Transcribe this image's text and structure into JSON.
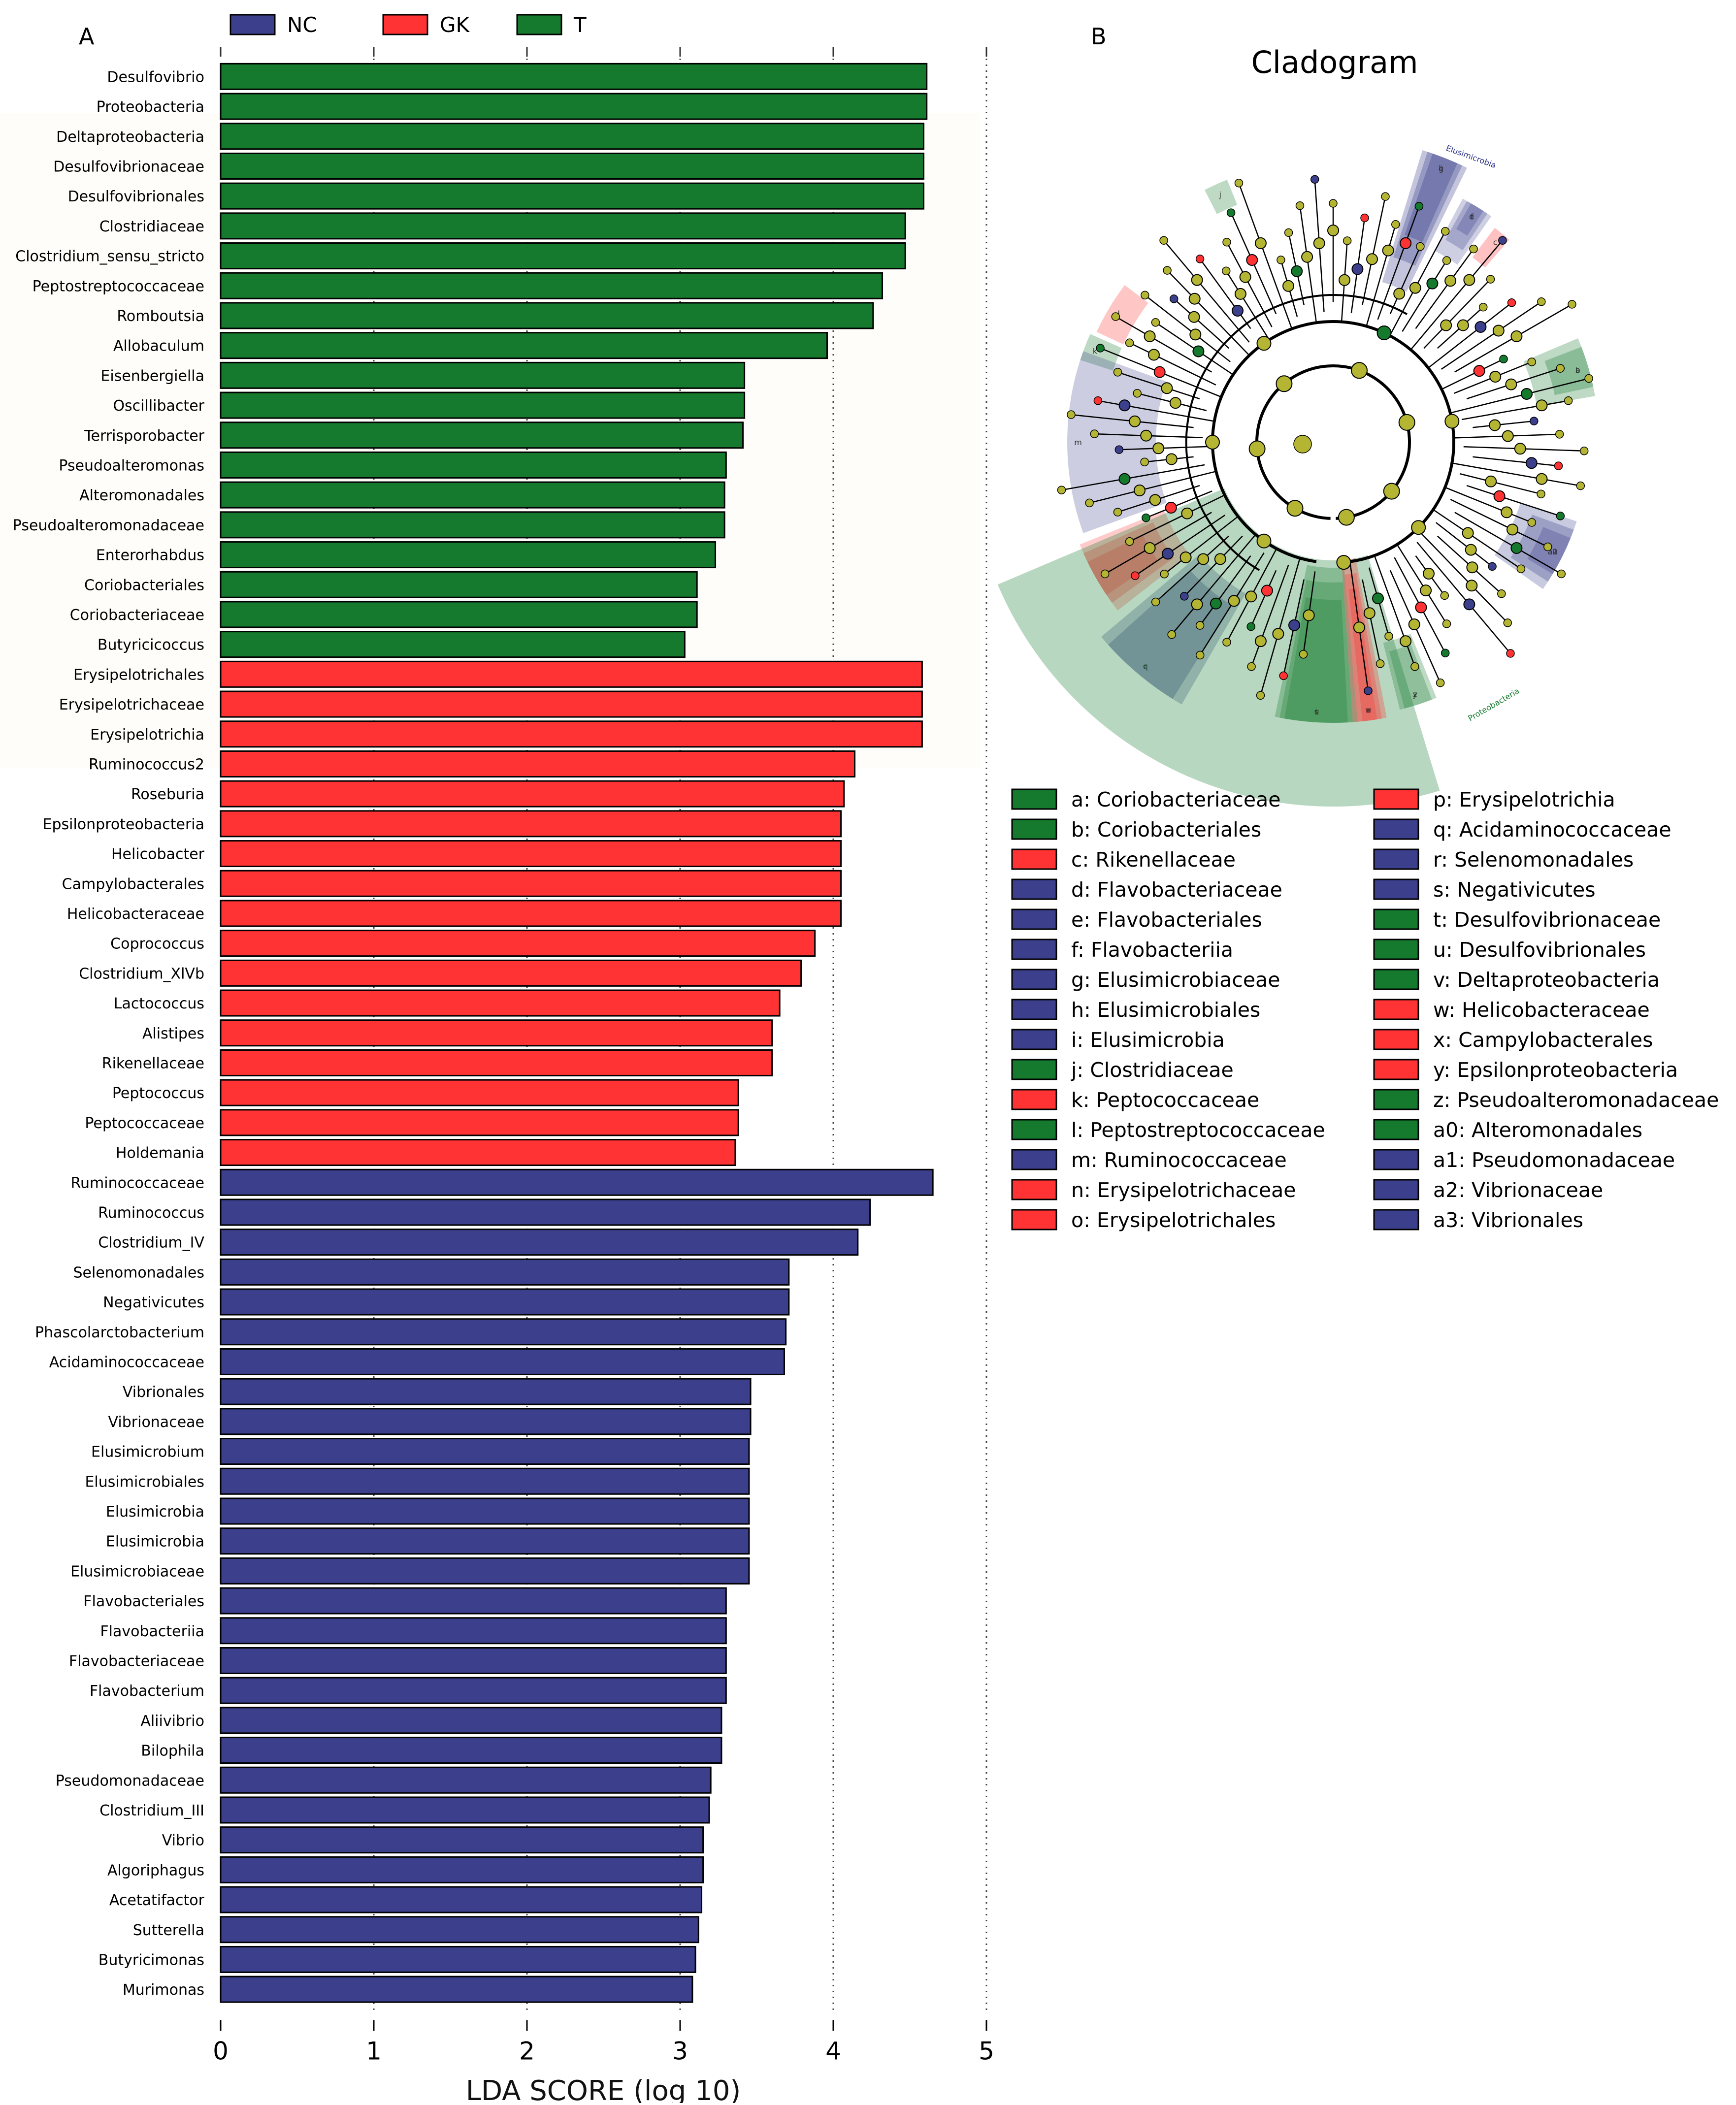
{
  "panel_a_letter": "A",
  "panel_b_letter": "B",
  "colors": {
    "NC": "#3b3f8c",
    "GK": "#ff3333",
    "T": "#157a2d"
  },
  "chart_data": {
    "type": "bar",
    "orientation": "horizontal",
    "xlabel": "LDA SCORE (log 10)",
    "ylabel": "",
    "xlim": [
      0,
      5
    ],
    "xticks": [
      "0",
      "1",
      "2",
      "3",
      "4",
      "5"
    ],
    "grid": "vertical dotted",
    "legend": {
      "position": "top",
      "entries": [
        {
          "key": "NC",
          "label": "NC"
        },
        {
          "key": "GK",
          "label": "GK"
        },
        {
          "key": "T",
          "label": "T"
        }
      ]
    },
    "categories": [
      "Desulfovibrio",
      "Proteobacteria",
      "Deltaproteobacteria",
      "Desulfovibrionaceae",
      "Desulfovibrionales",
      "Clostridiaceae",
      "Clostridium_sensu_stricto",
      "Peptostreptococcaceae",
      "Romboutsia",
      "Allobaculum",
      "Eisenbergiella",
      "Oscillibacter",
      "Terrisporobacter",
      "Pseudoalteromonas",
      "Alteromonadales",
      "Pseudoalteromonadaceae",
      "Enterorhabdus",
      "Coriobacteriales",
      "Coriobacteriaceae",
      "Butyricicoccus",
      "Erysipelotrichales",
      "Erysipelotrichaceae",
      "Erysipelotrichia",
      "Ruminococcus2",
      "Roseburia",
      "Epsilonproteobacteria",
      "Helicobacter",
      "Campylobacterales",
      "Helicobacteraceae",
      "Coprococcus",
      "Clostridium_XlVb",
      "Lactococcus",
      "Alistipes",
      "Rikenellaceae",
      "Peptococcus",
      "Peptococcaceae",
      "Holdemania",
      "Ruminococcaceae",
      "Ruminococcus",
      "Clostridium_IV",
      "Selenomonadales",
      "Negativicutes",
      "Phascolarctobacterium",
      "Acidaminococcaceae",
      "Vibrionales",
      "Vibrionaceae",
      "Elusimicrobium",
      "Elusimicrobiales",
      "Elusimicrobia",
      "Elusimicrobia",
      "Elusimicrobiaceae",
      "Flavobacteriales",
      "Flavobacteriia",
      "Flavobacteriaceae",
      "Flavobacterium",
      "Aliivibrio",
      "Bilophila",
      "Pseudomonadaceae",
      "Clostridium_III",
      "Vibrio",
      "Algoriphagus",
      "Acetatifactor",
      "Sutterella",
      "Butyricimonas",
      "Murimonas"
    ],
    "values": [
      4.61,
      4.61,
      4.59,
      4.59,
      4.59,
      4.47,
      4.47,
      4.32,
      4.26,
      3.96,
      3.42,
      3.42,
      3.41,
      3.3,
      3.29,
      3.29,
      3.23,
      3.11,
      3.11,
      3.03,
      4.58,
      4.58,
      4.58,
      4.14,
      4.07,
      4.05,
      4.05,
      4.05,
      4.05,
      3.88,
      3.79,
      3.65,
      3.6,
      3.6,
      3.38,
      3.38,
      3.36,
      4.65,
      4.24,
      4.16,
      3.71,
      3.71,
      3.69,
      3.68,
      3.46,
      3.46,
      3.45,
      3.45,
      3.45,
      3.45,
      3.45,
      3.3,
      3.3,
      3.3,
      3.3,
      3.27,
      3.27,
      3.2,
      3.19,
      3.15,
      3.15,
      3.14,
      3.12,
      3.1,
      3.08
    ],
    "groups": [
      "T",
      "T",
      "T",
      "T",
      "T",
      "T",
      "T",
      "T",
      "T",
      "T",
      "T",
      "T",
      "T",
      "T",
      "T",
      "T",
      "T",
      "T",
      "T",
      "T",
      "GK",
      "GK",
      "GK",
      "GK",
      "GK",
      "GK",
      "GK",
      "GK",
      "GK",
      "GK",
      "GK",
      "GK",
      "GK",
      "GK",
      "GK",
      "GK",
      "GK",
      "NC",
      "NC",
      "NC",
      "NC",
      "NC",
      "NC",
      "NC",
      "NC",
      "NC",
      "NC",
      "NC",
      "NC",
      "NC",
      "NC",
      "NC",
      "NC",
      "NC",
      "NC",
      "NC",
      "NC",
      "NC",
      "NC",
      "NC",
      "NC",
      "NC",
      "NC",
      "NC",
      "NC"
    ]
  },
  "cladogram": {
    "title": "Cladogram",
    "clade_labels": {
      "elusimicrobia": "Elusimicrobia",
      "proteobacteria": "Proteobacteria"
    },
    "legend_left": [
      {
        "text": "a: Coriobacteriaceae",
        "group": "T"
      },
      {
        "text": "b: Coriobacteriales",
        "group": "T"
      },
      {
        "text": "c: Rikenellaceae",
        "group": "GK"
      },
      {
        "text": "d: Flavobacteriaceae",
        "group": "NC"
      },
      {
        "text": "e: Flavobacteriales",
        "group": "NC"
      },
      {
        "text": "f: Flavobacteriia",
        "group": "NC"
      },
      {
        "text": "g: Elusimicrobiaceae",
        "group": "NC"
      },
      {
        "text": "h: Elusimicrobiales",
        "group": "NC"
      },
      {
        "text": "i: Elusimicrobia",
        "group": "NC"
      },
      {
        "text": "j: Clostridiaceae",
        "group": "T"
      },
      {
        "text": "k: Peptococcaceae",
        "group": "GK"
      },
      {
        "text": "l: Peptostreptococcaceae",
        "group": "T"
      },
      {
        "text": "m: Ruminococcaceae",
        "group": "NC"
      },
      {
        "text": "n: Erysipelotrichaceae",
        "group": "GK"
      },
      {
        "text": "o: Erysipelotrichales",
        "group": "GK"
      }
    ],
    "legend_right": [
      {
        "text": "p: Erysipelotrichia",
        "group": "GK"
      },
      {
        "text": "q: Acidaminococcaceae",
        "group": "NC"
      },
      {
        "text": "r: Selenomonadales",
        "group": "NC"
      },
      {
        "text": "s: Negativicutes",
        "group": "NC"
      },
      {
        "text": "t: Desulfovibrionaceae",
        "group": "T"
      },
      {
        "text": "u: Desulfovibrionales",
        "group": "T"
      },
      {
        "text": "v: Deltaproteobacteria",
        "group": "T"
      },
      {
        "text": "w: Helicobacteraceae",
        "group": "GK"
      },
      {
        "text": "x: Campylobacterales",
        "group": "GK"
      },
      {
        "text": "y: Epsilonproteobacteria",
        "group": "GK"
      },
      {
        "text": "z: Pseudoalteromonadaceae",
        "group": "T"
      },
      {
        "text": "a0: Alteromonadales",
        "group": "T"
      },
      {
        "text": "a1: Pseudomonadaceae",
        "group": "NC"
      },
      {
        "text": "a2: Vibrionaceae",
        "group": "NC"
      },
      {
        "text": "a3: Vibrionales",
        "group": "NC"
      }
    ],
    "sector_letters": [
      "i",
      "h",
      "g",
      "f",
      "e",
      "d",
      "c",
      "b",
      "a",
      "j",
      "l",
      "k",
      "m",
      "n",
      "o",
      "p",
      "q",
      "r",
      "s",
      "t",
      "u",
      "v",
      "w",
      "x",
      "y",
      "z",
      "a0",
      "a1",
      "a2",
      "a3"
    ]
  }
}
